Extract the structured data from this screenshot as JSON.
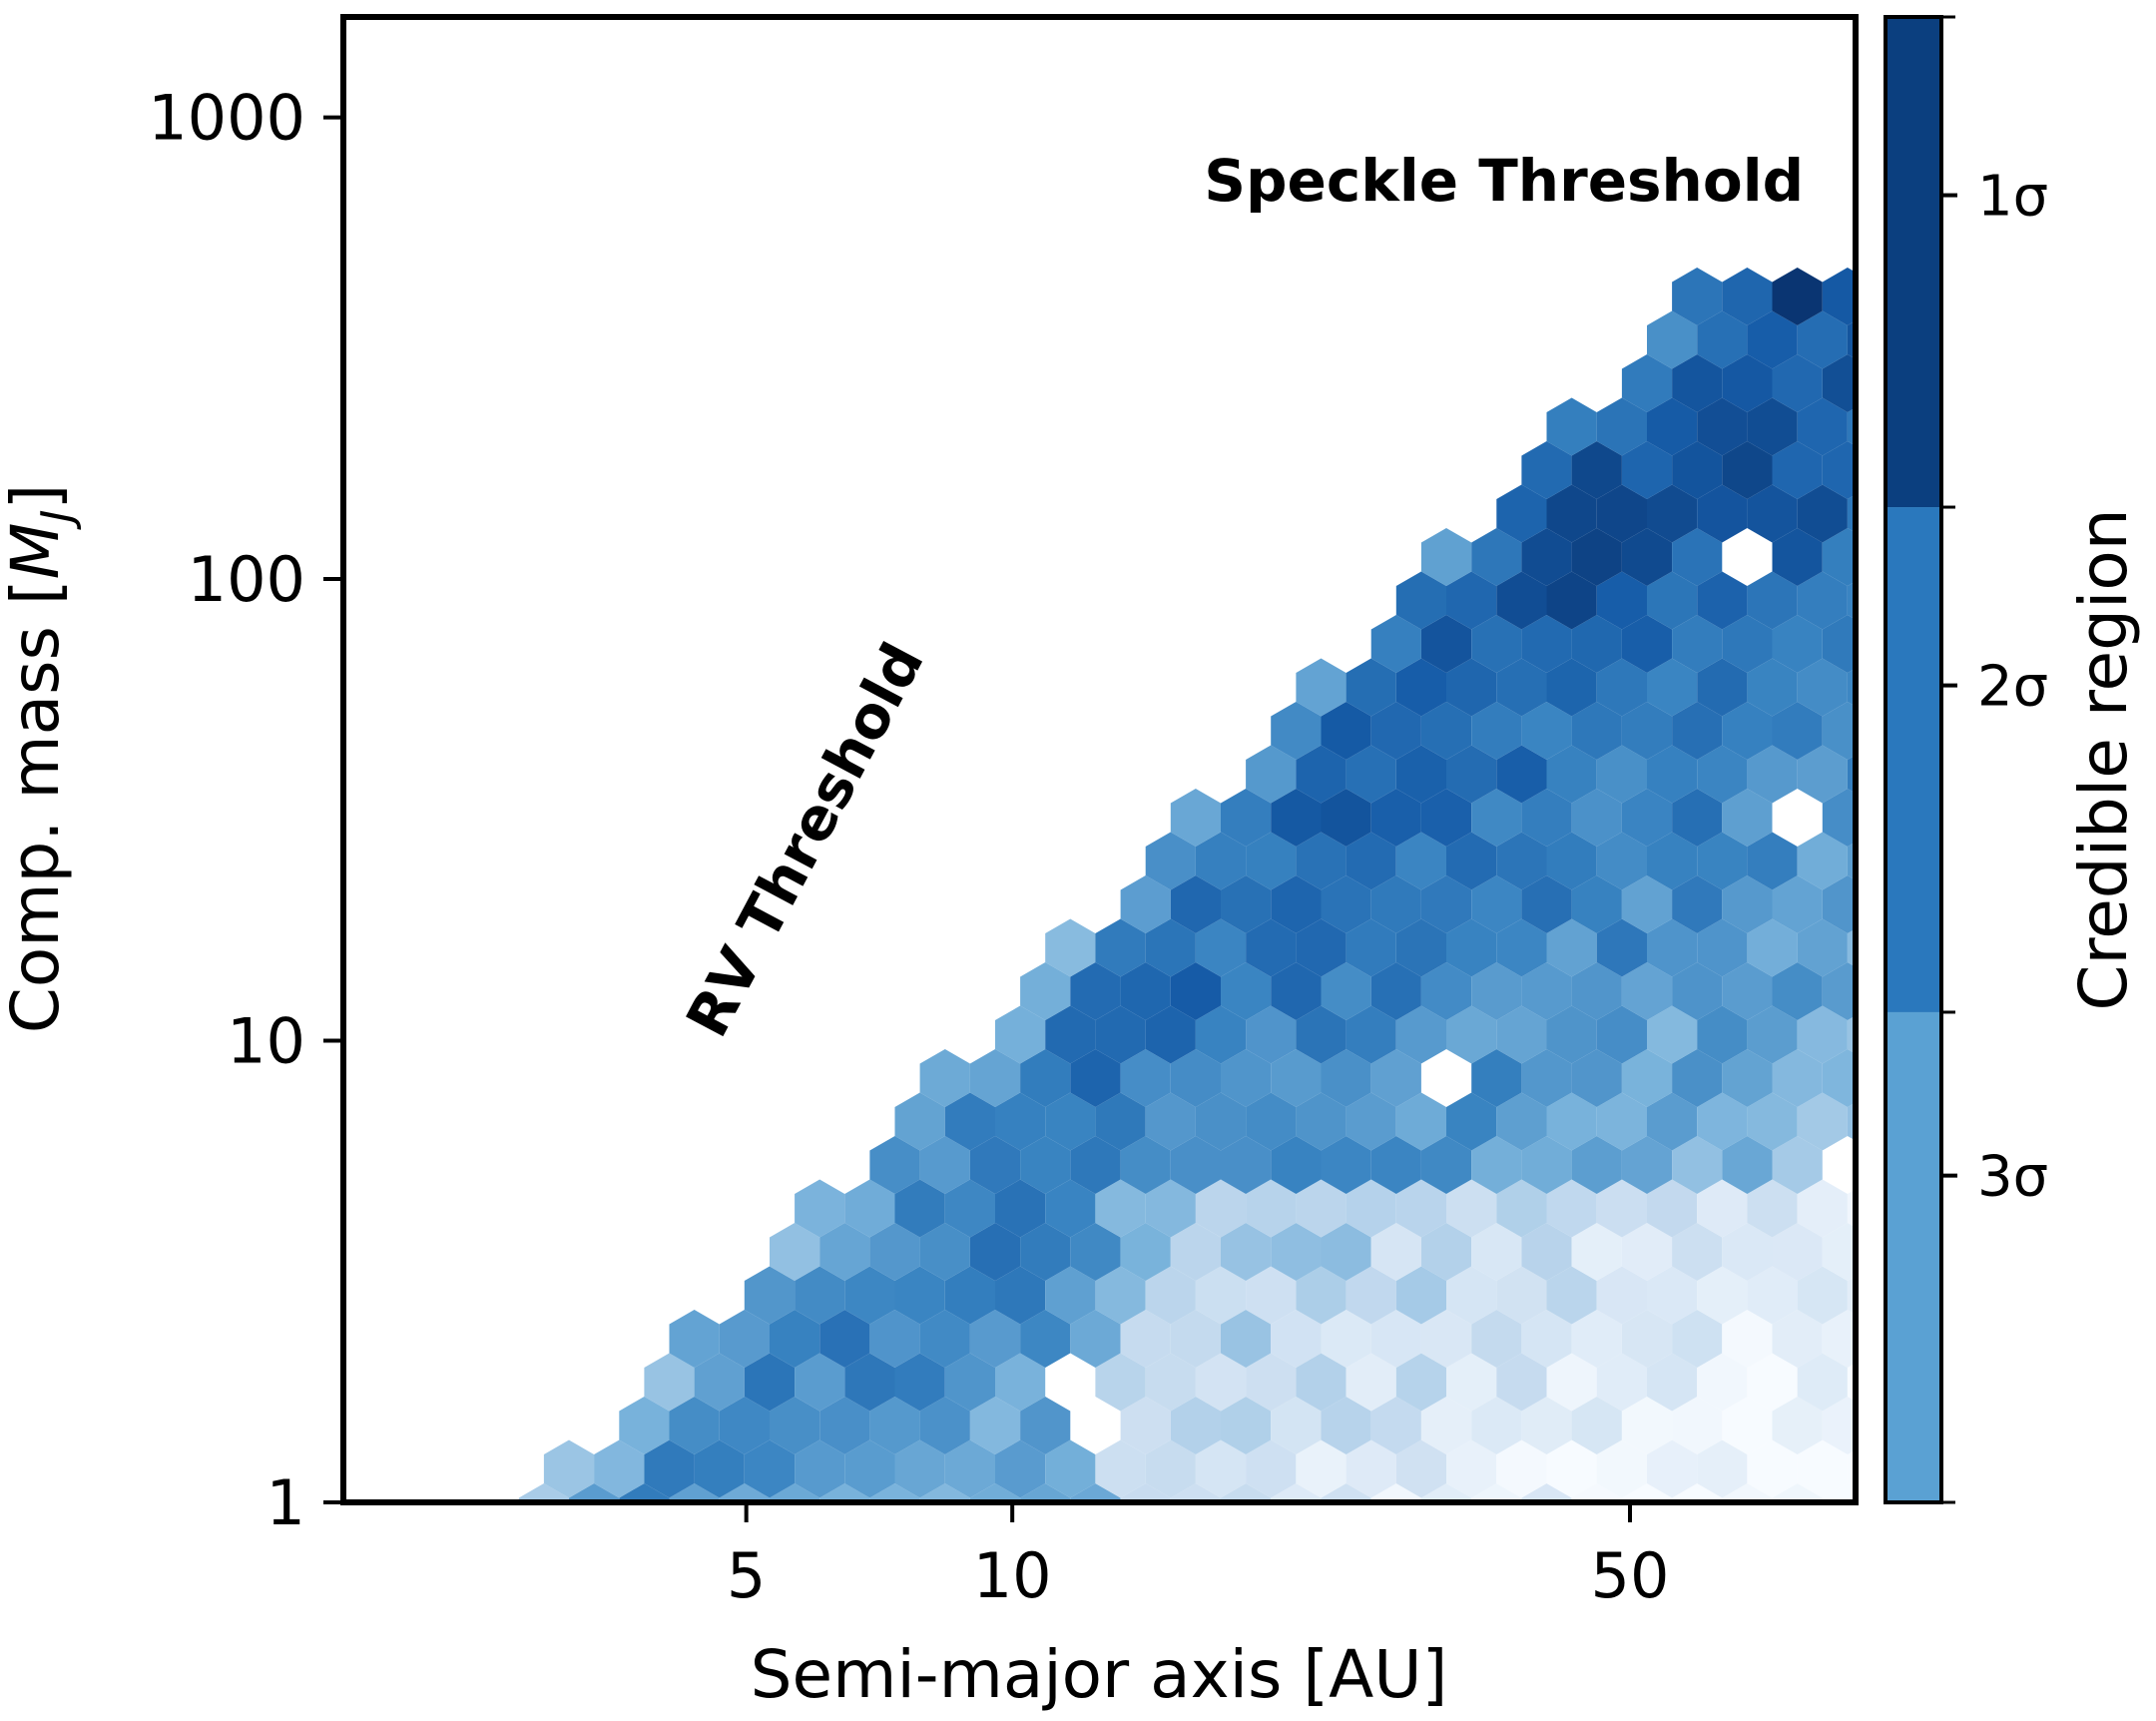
{
  "chart_data": {
    "type": "heatmap",
    "subtype": "hexbin",
    "xlabel": "Semi-major axis [AU]",
    "ylabel_main": "Comp. mass [",
    "ylabel_sym": "M",
    "ylabel_sub": "J",
    "ylabel_close": "]",
    "x_scale": "log",
    "y_scale": "log",
    "xlim": [
      1.75,
      90
    ],
    "ylim": [
      1,
      1650
    ],
    "x_ticks": [
      {
        "value": 5,
        "label": "5"
      },
      {
        "value": 10,
        "label": "10"
      },
      {
        "value": 50,
        "label": "50"
      }
    ],
    "y_ticks": [
      {
        "value": 1,
        "label": "1"
      },
      {
        "value": 10,
        "label": "10"
      },
      {
        "value": 100,
        "label": "100"
      },
      {
        "value": 1000,
        "label": "1000"
      }
    ],
    "colorbar": {
      "label": "Credible region",
      "levels": [
        {
          "label": "1σ",
          "value": 0.88,
          "color": "#0b3f7f"
        },
        {
          "label": "2σ",
          "value": 0.55,
          "color": "#2a78bd"
        },
        {
          "label": "3σ",
          "value": 0.22,
          "color": "#5aa1d3"
        }
      ],
      "bands": [
        {
          "from": 0.0,
          "to": 0.33,
          "color": "#5aa1d3"
        },
        {
          "from": 0.33,
          "to": 0.67,
          "color": "#2a78bd"
        },
        {
          "from": 0.67,
          "to": 1.0,
          "color": "#0b3f7f"
        }
      ]
    },
    "annotations": [
      {
        "text": "Speckle Threshold",
        "x": 36,
        "y": 730,
        "rotation": 0
      },
      {
        "text": "RV Threshold",
        "x": 6.1,
        "y": 26,
        "rotation": -62
      }
    ],
    "colormap": "Blues",
    "grid": false,
    "legend": "none",
    "density_model": {
      "rv_boundary": {
        "a": 2.85,
        "m": 1,
        "slope": 2.0
      },
      "speckle_cap_mass": 420,
      "peak": {
        "a": 38,
        "m": 320
      }
    }
  }
}
